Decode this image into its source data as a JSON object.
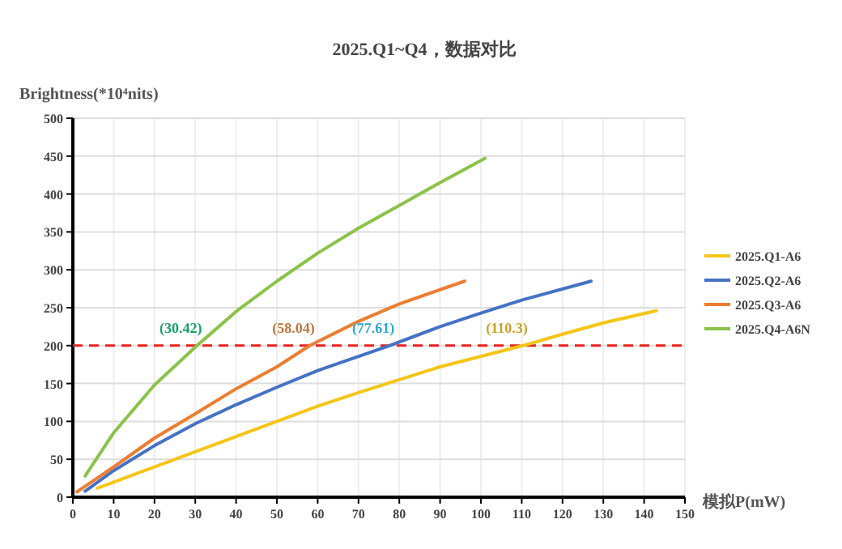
{
  "chart_data": {
    "type": "line",
    "title": "2025.Q1~Q4，数据对比",
    "xlabel": "模拟P(mW)",
    "ylabel": "Brightness(*10⁴nits)",
    "xlim": [
      0,
      150
    ],
    "xticks": [
      0,
      10,
      20,
      30,
      40,
      50,
      60,
      70,
      80,
      90,
      100,
      110,
      120,
      130,
      140,
      150
    ],
    "ylim": [
      0,
      500
    ],
    "yticks": [
      0,
      50,
      100,
      150,
      200,
      250,
      300,
      350,
      400,
      450,
      500
    ],
    "grid": true,
    "legend": "right",
    "marker": "none",
    "line_style": "solid",
    "ref_lines": [
      {
        "axis": "y",
        "value": 200,
        "color": "#e8231f",
        "line_style": "dashed"
      }
    ],
    "annotations": [
      {
        "text": "(30.42)",
        "x": 30.42,
        "y": 200
      },
      {
        "text": "(58.04)",
        "x": 58.04,
        "y": 200
      },
      {
        "text": "(77.61)",
        "x": 77.61,
        "y": 200
      },
      {
        "text": "(110.3)",
        "x": 110.3,
        "y": 200
      }
    ],
    "series": [
      {
        "name": "2025.Q1-A6",
        "color": "#f5c518",
        "x": [
          6,
          20,
          30,
          40,
          50,
          60,
          70,
          80,
          90,
          110.3,
          120,
          130,
          143
        ],
        "values": [
          12,
          40,
          60,
          80,
          100,
          120,
          138,
          155,
          172,
          200,
          215,
          230,
          246
        ]
      },
      {
        "name": "2025.Q2-A6",
        "color": "#4472c4",
        "x": [
          3,
          10,
          20,
          30,
          40,
          50,
          60,
          77.61,
          90,
          100,
          110,
          127
        ],
        "values": [
          8,
          35,
          68,
          97,
          122,
          145,
          167,
          200,
          225,
          243,
          260,
          285
        ]
      },
      {
        "name": "2025.Q3-A6",
        "color": "#ed7d31",
        "x": [
          1,
          10,
          20,
          30,
          40,
          50,
          58.04,
          70,
          80,
          96
        ],
        "values": [
          7,
          40,
          78,
          110,
          143,
          172,
          200,
          232,
          255,
          285
        ]
      },
      {
        "name": "2025.Q4-A6N",
        "color": "#8bc34a",
        "x": [
          3,
          10,
          20,
          30.42,
          40,
          50,
          60,
          70,
          80,
          90,
          101
        ],
        "values": [
          28,
          85,
          148,
          200,
          245,
          285,
          322,
          355,
          385,
          415,
          447
        ]
      }
    ]
  }
}
